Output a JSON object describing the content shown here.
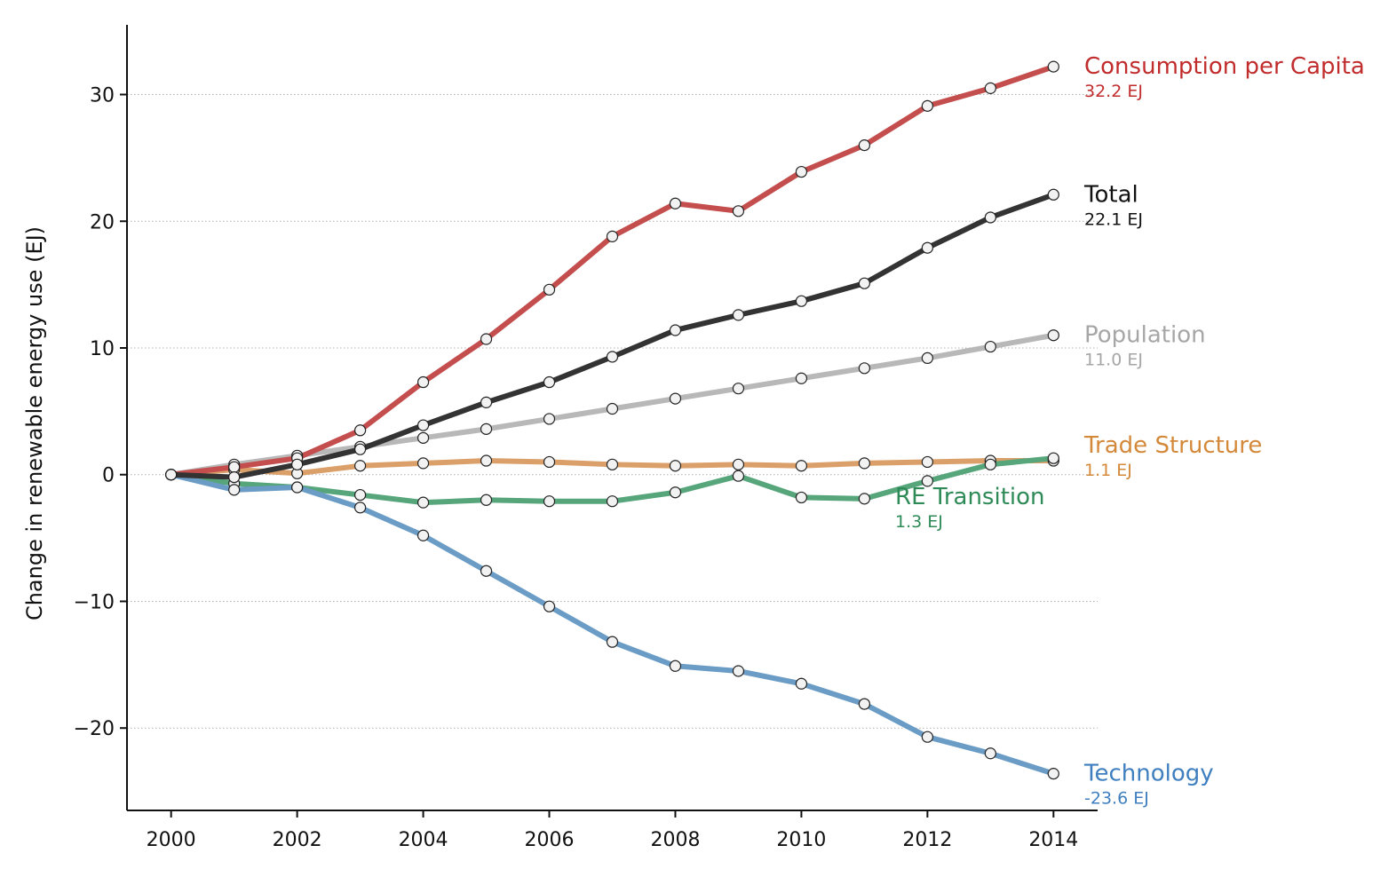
{
  "chart_data": {
    "type": "line",
    "title": "",
    "xlabel": "",
    "ylabel": "Change in renewable energy use (EJ)",
    "x": [
      2000,
      2001,
      2002,
      2003,
      2004,
      2005,
      2006,
      2007,
      2008,
      2009,
      2010,
      2011,
      2012,
      2013,
      2014
    ],
    "xlim": [
      1999.3,
      2014.7
    ],
    "ylim": [
      -26.5,
      35.5
    ],
    "x_ticks": [
      "2000",
      "2002",
      "2004",
      "2006",
      "2008",
      "2010",
      "2012",
      "2014"
    ],
    "y_ticks": [
      "30",
      "20",
      "10",
      "0",
      "−10",
      "−20"
    ],
    "grid": "horizontal dotted",
    "legend": "direct labels at right end of lines",
    "series": [
      {
        "name": "Population",
        "end_label": "11.0 EJ",
        "color": "#b8b8b8",
        "label_color": "#a6a6a6",
        "values": [
          0,
          0.8,
          1.5,
          2.2,
          2.9,
          3.6,
          4.4,
          5.2,
          6.0,
          6.8,
          7.6,
          8.4,
          9.2,
          10.1,
          11.0
        ]
      },
      {
        "name": "Trade Structure",
        "end_label": "1.1 EJ",
        "color": "#dba06a",
        "label_color": "#d4893a",
        "values": [
          0,
          0.4,
          0.1,
          0.7,
          0.9,
          1.1,
          1.0,
          0.8,
          0.7,
          0.8,
          0.7,
          0.9,
          1.0,
          1.1,
          1.1
        ]
      },
      {
        "name": "RE Transition",
        "end_label": "1.3 EJ",
        "color": "#57a57b",
        "label_color": "#2e8b57",
        "values": [
          0,
          -0.7,
          -1.0,
          -1.6,
          -2.2,
          -2.0,
          -2.1,
          -2.1,
          -1.4,
          -0.1,
          -1.8,
          -1.9,
          -0.5,
          0.8,
          1.3
        ]
      },
      {
        "name": "Technology",
        "end_label": "-23.6 EJ",
        "color": "#6a9cc6",
        "label_color": "#3f7fbf",
        "values": [
          0,
          -1.2,
          -1.0,
          -2.6,
          -4.8,
          -7.6,
          -10.4,
          -13.2,
          -15.1,
          -15.5,
          -16.5,
          -18.1,
          -20.7,
          -22.0,
          -23.6
        ]
      },
      {
        "name": "Consumption per Capita",
        "end_label": "32.2 EJ",
        "color": "#c44e4e",
        "label_color": "#c12d2d",
        "values": [
          0,
          0.6,
          1.3,
          3.5,
          7.3,
          10.7,
          14.6,
          18.8,
          21.4,
          20.8,
          23.9,
          26.0,
          29.1,
          30.5,
          32.2
        ]
      },
      {
        "name": "Total",
        "end_label": "22.1 EJ",
        "color": "#333333",
        "label_color": "#111111",
        "values": [
          0,
          -0.2,
          0.8,
          2.0,
          3.9,
          5.7,
          7.3,
          9.3,
          11.4,
          12.6,
          13.7,
          15.1,
          17.9,
          20.3,
          22.1
        ]
      }
    ]
  }
}
